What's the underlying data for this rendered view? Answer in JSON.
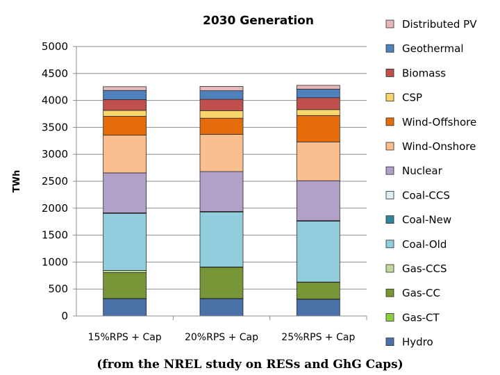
{
  "caption": "(from the NREL study on RESs and GhG Caps)",
  "chart_data": {
    "type": "bar",
    "stacked": true,
    "title": "2030 Generation",
    "xlabel": "",
    "ylabel": "TWh",
    "ylim": [
      0,
      5000
    ],
    "yticks": [
      0,
      500,
      1000,
      1500,
      2000,
      2500,
      3000,
      3500,
      4000,
      4500,
      5000
    ],
    "grid": true,
    "legend_position": "right",
    "categories": [
      "15%RPS + Cap",
      "20%RPS + Cap",
      "25%RPS + Cap"
    ],
    "series": [
      {
        "name": "Hydro",
        "color": "#4a72a8",
        "values": [
          320,
          320,
          310
        ]
      },
      {
        "name": "Gas-CT",
        "color": "#8fcf3f",
        "values": [
          5,
          5,
          5
        ]
      },
      {
        "name": "Gas-CC",
        "color": "#779637",
        "values": [
          480,
          580,
          310
        ]
      },
      {
        "name": "Gas-CCS",
        "color": "#c2d89a",
        "values": [
          40,
          5,
          5
        ]
      },
      {
        "name": "Coal-Old",
        "color": "#92cddd",
        "values": [
          1060,
          1020,
          1130
        ]
      },
      {
        "name": "Coal-New",
        "color": "#31859c",
        "values": [
          5,
          5,
          5
        ]
      },
      {
        "name": "Coal-CCS",
        "color": "#dbeef4",
        "values": [
          5,
          5,
          5
        ]
      },
      {
        "name": "Nuclear",
        "color": "#b1a0c7",
        "values": [
          740,
          740,
          740
        ]
      },
      {
        "name": "Wind-Onshore",
        "color": "#fbbf8f",
        "values": [
          700,
          690,
          720
        ]
      },
      {
        "name": "Wind-Offshore",
        "color": "#e46c0a",
        "values": [
          350,
          300,
          490
        ]
      },
      {
        "name": "CSP",
        "color": "#f8d66b",
        "values": [
          110,
          140,
          110
        ]
      },
      {
        "name": "Biomass",
        "color": "#c0504d",
        "values": [
          200,
          210,
          220
        ]
      },
      {
        "name": "Geothermal",
        "color": "#4f81bd",
        "values": [
          170,
          160,
          160
        ]
      },
      {
        "name": "Distributed PV",
        "color": "#e6b9b8",
        "values": [
          70,
          80,
          70
        ]
      }
    ]
  }
}
